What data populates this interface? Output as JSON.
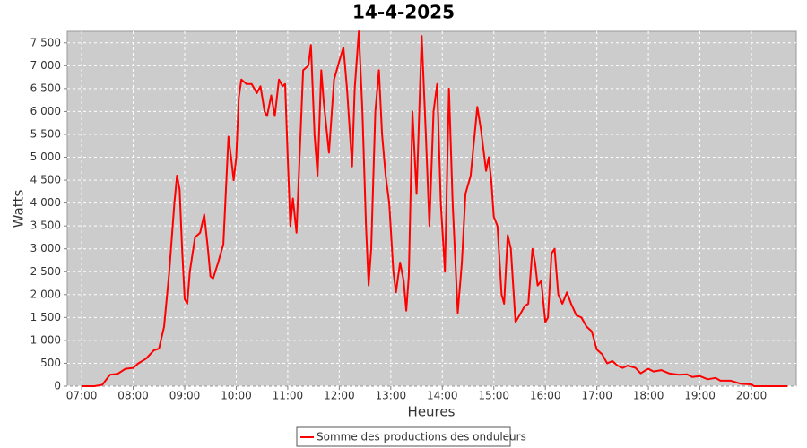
{
  "chart_data": {
    "type": "line",
    "title": "14-4-2025",
    "x_label": "Heures",
    "y_label": "Watts",
    "xlim": [
      6.72,
      20.87
    ],
    "ylim": [
      0,
      7750
    ],
    "xticks": [
      {
        "value": 7,
        "label": "07:00"
      },
      {
        "value": 8,
        "label": "08:00"
      },
      {
        "value": 9,
        "label": "09:00"
      },
      {
        "value": 10,
        "label": "10:00"
      },
      {
        "value": 11,
        "label": "11:00"
      },
      {
        "value": 12,
        "label": "12:00"
      },
      {
        "value": 13,
        "label": "13:00"
      },
      {
        "value": 14,
        "label": "14:00"
      },
      {
        "value": 15,
        "label": "15:00"
      },
      {
        "value": 16,
        "label": "16:00"
      },
      {
        "value": 17,
        "label": "17:00"
      },
      {
        "value": 18,
        "label": "18:00"
      },
      {
        "value": 19,
        "label": "19:00"
      },
      {
        "value": 20,
        "label": "20:00"
      }
    ],
    "yticks": [
      0,
      500,
      {
        "value": 1000,
        "label": "1 000"
      },
      {
        "value": 1500,
        "label": "1 500"
      },
      {
        "value": 2000,
        "label": "2 000"
      },
      {
        "value": 2500,
        "label": "2 500"
      },
      {
        "value": 3000,
        "label": "3 000"
      },
      {
        "value": 3500,
        "label": "3 500"
      },
      {
        "value": 4000,
        "label": "4 000"
      },
      {
        "value": 4500,
        "label": "4 500"
      },
      {
        "value": 5000,
        "label": "5 000"
      },
      {
        "value": 5500,
        "label": "5 500"
      },
      {
        "value": 6000,
        "label": "6 000"
      },
      {
        "value": 6500,
        "label": "6 500"
      },
      {
        "value": 7000,
        "label": "7 000"
      },
      {
        "value": 7500,
        "label": "7 500"
      }
    ],
    "grid": true,
    "legend": "bottom",
    "x": [
      7.0,
      7.25,
      7.4,
      7.55,
      7.7,
      7.85,
      8.0,
      8.1,
      8.25,
      8.4,
      8.5,
      8.6,
      8.7,
      8.8,
      8.85,
      8.9,
      8.95,
      9.0,
      9.05,
      9.1,
      9.2,
      9.3,
      9.38,
      9.45,
      9.5,
      9.55,
      9.65,
      9.75,
      9.8,
      9.85,
      9.9,
      9.95,
      10.0,
      10.05,
      10.1,
      10.2,
      10.3,
      10.4,
      10.47,
      10.55,
      10.6,
      10.68,
      10.75,
      10.83,
      10.9,
      10.95,
      11.0,
      11.05,
      11.1,
      11.17,
      11.3,
      11.4,
      11.45,
      11.52,
      11.58,
      11.65,
      11.7,
      11.8,
      11.9,
      12.0,
      12.08,
      12.15,
      12.25,
      12.3,
      12.38,
      12.45,
      12.52,
      12.57,
      12.62,
      12.7,
      12.77,
      12.83,
      12.9,
      12.97,
      13.05,
      13.1,
      13.18,
      13.25,
      13.3,
      13.35,
      13.42,
      13.5,
      13.6,
      13.68,
      13.75,
      13.83,
      13.9,
      13.97,
      14.05,
      14.13,
      14.2,
      14.3,
      14.38,
      14.45,
      14.55,
      14.68,
      14.75,
      14.85,
      14.9,
      14.95,
      15.0,
      15.07,
      15.15,
      15.2,
      15.27,
      15.33,
      15.42,
      15.5,
      15.6,
      15.67,
      15.75,
      15.8,
      15.85,
      15.92,
      16.0,
      16.05,
      16.12,
      16.18,
      16.25,
      16.33,
      16.42,
      16.5,
      16.6,
      16.7,
      16.8,
      16.9,
      17.0,
      17.1,
      17.2,
      17.3,
      17.4,
      17.5,
      17.6,
      17.75,
      17.85,
      17.95,
      18.0,
      18.1,
      18.25,
      18.4,
      18.6,
      18.75,
      18.85,
      19.0,
      19.15,
      19.3,
      19.4,
      19.6,
      19.8,
      20.0,
      20.05,
      20.7
    ],
    "series": [
      {
        "name": "Somme des productions des onduleurs",
        "color": "#ff0000",
        "values": [
          0,
          0,
          30,
          250,
          270,
          380,
          400,
          500,
          600,
          780,
          820,
          1300,
          2500,
          4000,
          4600,
          4300,
          3000,
          1900,
          1800,
          2500,
          3250,
          3350,
          3750,
          3000,
          2400,
          2350,
          2700,
          3100,
          4300,
          5450,
          5000,
          4500,
          5000,
          6300,
          6700,
          6600,
          6600,
          6400,
          6550,
          6000,
          5900,
          6350,
          5900,
          6700,
          6550,
          6600,
          5000,
          3500,
          4100,
          3350,
          6900,
          7000,
          7450,
          5500,
          4600,
          6900,
          6200,
          5100,
          6700,
          7100,
          7400,
          6500,
          4800,
          6500,
          7750,
          6000,
          3500,
          2200,
          3000,
          6000,
          6900,
          5500,
          4600,
          4000,
          2500,
          2050,
          2700,
          2300,
          1650,
          2400,
          6000,
          4200,
          7650,
          5500,
          3500,
          6000,
          6600,
          4000,
          2500,
          6500,
          4000,
          1600,
          2700,
          4200,
          4600,
          6100,
          5600,
          4700,
          5000,
          4500,
          3700,
          3500,
          2000,
          1800,
          3300,
          3000,
          1400,
          1550,
          1750,
          1800,
          3000,
          2700,
          2200,
          2300,
          1400,
          1500,
          2900,
          3000,
          2000,
          1800,
          2050,
          1800,
          1550,
          1500,
          1300,
          1200,
          800,
          700,
          500,
          550,
          450,
          400,
          450,
          400,
          280,
          350,
          380,
          320,
          350,
          280,
          250,
          260,
          200,
          220,
          150,
          180,
          120,
          120,
          50,
          40,
          0,
          0
        ]
      }
    ]
  }
}
